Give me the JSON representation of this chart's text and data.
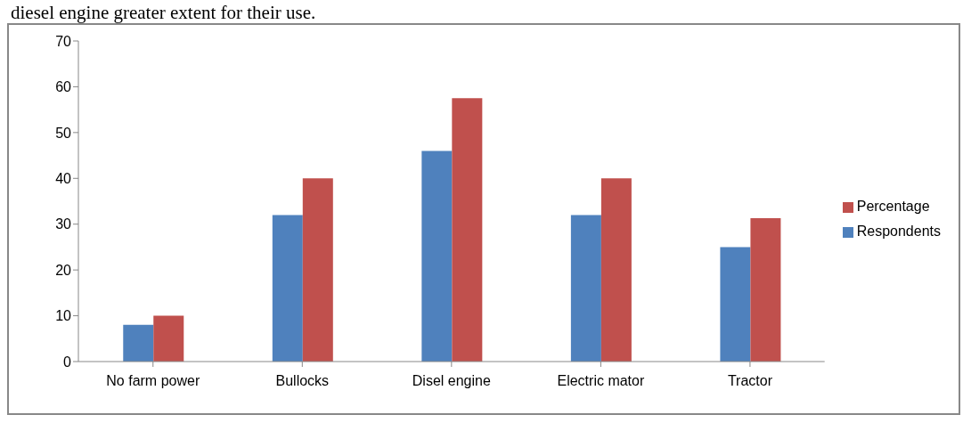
{
  "chart_data": {
    "type": "bar",
    "categories": [
      "No farm power",
      "Bullocks",
      "Disel engine",
      "Electric mator",
      "Tractor"
    ],
    "series": [
      {
        "name": "Respondents",
        "color": "#4f81bd",
        "values": [
          8,
          32,
          46,
          32,
          25
        ]
      },
      {
        "name": "Percentage",
        "color": "#c0504d",
        "values": [
          10,
          40,
          57.5,
          40,
          31.3
        ]
      }
    ],
    "ylim": [
      0,
      70
    ],
    "yticks": [
      0,
      10,
      20,
      30,
      40,
      50,
      60,
      70
    ],
    "grid": false,
    "legend": "right",
    "annotations": [
      "diesel engine greater extent for their use."
    ]
  }
}
